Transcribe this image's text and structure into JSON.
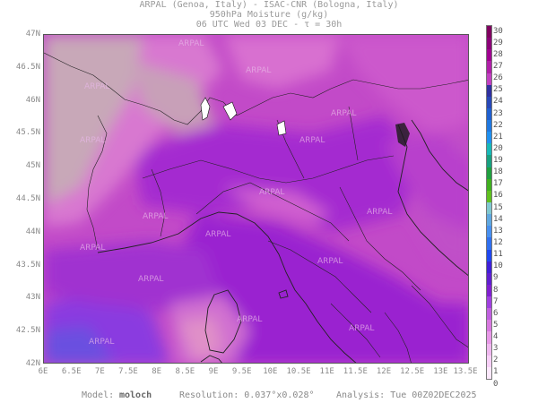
{
  "header": {
    "line1": "ARPAL (Genoa, Italy)  -  ISAC-CNR (Bologna, Italy)",
    "line2": "950hPa Moisture (g/kg)",
    "line3": "06 UTC Wed 03 DEC  -  τ = 30h"
  },
  "axes": {
    "y_labels": [
      "47N",
      "46.5N",
      "46N",
      "45.5N",
      "45N",
      "44.5N",
      "44N",
      "43.5N",
      "43N",
      "42.5N",
      "42N"
    ],
    "x_labels": [
      "6E",
      "6.5E",
      "7E",
      "7.5E",
      "8E",
      "8.5E",
      "9E",
      "9.5E",
      "10E",
      "10.5E",
      "11E",
      "11.5E",
      "12E",
      "12.5E",
      "13E",
      "13.5E"
    ]
  },
  "colorbar": {
    "labels": [
      "30",
      "29",
      "28",
      "27",
      "26",
      "25",
      "24",
      "23",
      "22",
      "21",
      "20",
      "19",
      "18",
      "17",
      "16",
      "15",
      "14",
      "13",
      "12",
      "11",
      "10",
      "9",
      "8",
      "7",
      "6",
      "5",
      "4",
      "3",
      "2",
      "1",
      "0"
    ],
    "colors": [
      "#800060",
      "#8c0078",
      "#a00090",
      "#b020a8",
      "#c040c0",
      "#3030a0",
      "#2848b8",
      "#2060d0",
      "#2078e0",
      "#2090f0",
      "#18b8b8",
      "#18a080",
      "#20a040",
      "#40b020",
      "#60c020",
      "#80c8d0",
      "#60a8e0",
      "#4890f0",
      "#3070f0",
      "#2048f0",
      "#4020d8",
      "#6020d0",
      "#8020d0",
      "#a040e0",
      "#c060e0",
      "#d878e0",
      "#e898e8",
      "#f0b8f0",
      "#f8d0f8",
      "#fce8fc"
    ]
  },
  "footer": {
    "model_label": "Model:",
    "model_value": "moloch",
    "resolution": "Resolution: 0.037°x0.028°",
    "analysis": "Analysis: Tue 00Z02DEC2025"
  },
  "watermark": "ARPAL",
  "colors": {
    "frame": "#555555",
    "purple_deep": "#9a1fd0",
    "magenta": "#c040c8",
    "pink": "#d873d0",
    "light_pink": "#d8a0c8",
    "grey_pink": "#c8a8b8"
  }
}
